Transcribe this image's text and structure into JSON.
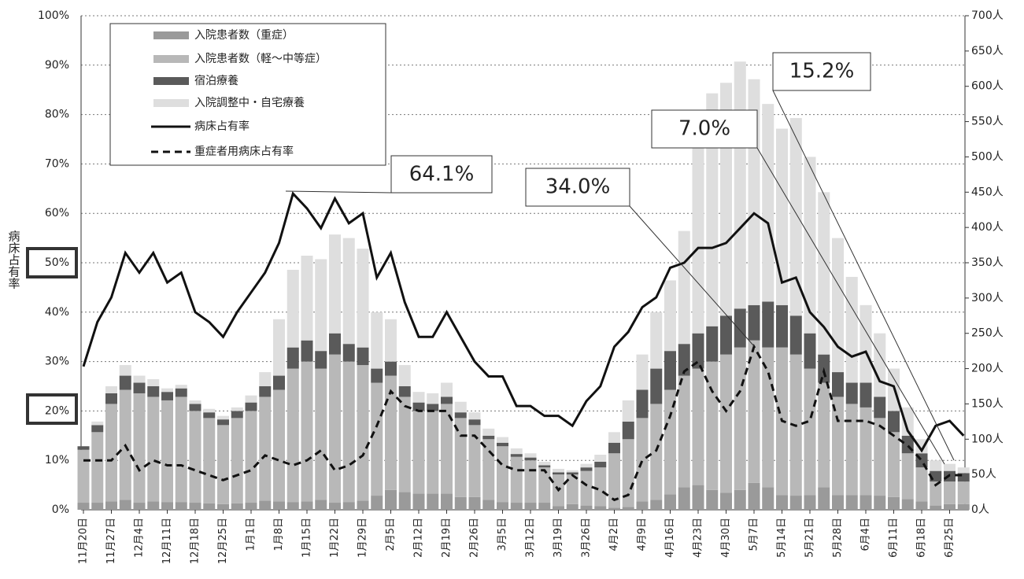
{
  "chart_data": {
    "type": "bar",
    "stacked": true,
    "y_label": "病床占有率",
    "categories": [
      "11月20日",
      null,
      "11月27日",
      null,
      "12月4日",
      null,
      "12月11日",
      null,
      "12月18日",
      null,
      "12月25日",
      null,
      "1月1日",
      null,
      "1月8日",
      null,
      "1月15日",
      null,
      "1月22日",
      null,
      "1月29日",
      null,
      "2月5日",
      null,
      "2月12日",
      null,
      "2月19日",
      null,
      "2月26日",
      null,
      "3月5日",
      null,
      "3月12日",
      null,
      "3月19日",
      null,
      "3月26日",
      null,
      "4月2日",
      null,
      "4月9日",
      null,
      "4月16日",
      null,
      "4月23日",
      null,
      "4月30日",
      null,
      "5月7日",
      null,
      "5月14日",
      null,
      "5月21日",
      null,
      "5月28日",
      null,
      "6月4日",
      null,
      "6月11日",
      null,
      "6月18日",
      null,
      "6月25日",
      null
    ],
    "series": [
      {
        "name": "入院患者数（重症）",
        "type": "bar",
        "axis": "y2",
        "color": "#9a9a9a",
        "values": [
          10,
          10,
          12,
          14,
          10,
          12,
          11,
          11,
          10,
          9,
          8,
          9,
          10,
          13,
          12,
          11,
          12,
          14,
          10,
          11,
          13,
          20,
          28,
          25,
          23,
          23,
          23,
          18,
          18,
          14,
          11,
          10,
          10,
          10,
          5,
          8,
          6,
          5,
          3,
          4,
          12,
          14,
          22,
          32,
          35,
          28,
          24,
          28,
          38,
          32,
          21,
          20,
          21,
          32,
          21,
          21,
          21,
          20,
          18,
          15,
          12,
          6,
          8,
          8
        ]
      },
      {
        "name": "入院患者数（軽～中等症）",
        "type": "bar",
        "axis": "y2",
        "color": "#b8b8b8",
        "values": [
          75,
          100,
          138,
          156,
          155,
          148,
          144,
          149,
          130,
          121,
          112,
          121,
          130,
          147,
          158,
          189,
          198,
          186,
          210,
          199,
          192,
          160,
          162,
          135,
          117,
          117,
          127,
          112,
          102,
          86,
          79,
          65,
          60,
          50,
          45,
          42,
          49,
          55,
          77,
          96,
          118,
          136,
          148,
          158,
          165,
          182,
          196,
          202,
          202,
          198,
          209,
          200,
          179,
          148,
          139,
          129,
          124,
          110,
          92,
          65,
          48,
          34,
          32,
          32
        ]
      },
      {
        "name": "宿泊療養",
        "type": "bar",
        "axis": "y2",
        "color": "#5a5a5a",
        "values": [
          5,
          10,
          15,
          20,
          15,
          15,
          12,
          12,
          10,
          8,
          8,
          10,
          12,
          15,
          20,
          30,
          30,
          25,
          30,
          25,
          25,
          20,
          20,
          15,
          12,
          10,
          10,
          8,
          8,
          5,
          5,
          4,
          4,
          3,
          3,
          3,
          5,
          8,
          15,
          25,
          40,
          50,
          55,
          45,
          50,
          50,
          55,
          55,
          50,
          65,
          60,
          55,
          50,
          40,
          35,
          30,
          35,
          30,
          30,
          25,
          20,
          15,
          15,
          12
        ]
      },
      {
        "name": "入院調整中・自宅療養",
        "type": "bar",
        "axis": "y2",
        "color": "#dedede",
        "values": [
          0,
          5,
          10,
          15,
          10,
          10,
          5,
          5,
          5,
          5,
          5,
          5,
          10,
          20,
          80,
          110,
          120,
          130,
          140,
          150,
          140,
          80,
          60,
          30,
          15,
          15,
          20,
          15,
          10,
          10,
          8,
          8,
          6,
          5,
          5,
          3,
          5,
          10,
          15,
          30,
          50,
          80,
          100,
          160,
          280,
          330,
          330,
          350,
          320,
          280,
          250,
          280,
          250,
          230,
          190,
          150,
          110,
          90,
          60,
          40,
          20,
          15,
          10,
          8
        ]
      },
      {
        "name": "病床占有率",
        "type": "line",
        "color": "#111111",
        "dash": false,
        "values": [
          29,
          38,
          43,
          52,
          48,
          52,
          46,
          48,
          40,
          38,
          35,
          40,
          44,
          48,
          54,
          64,
          61,
          57,
          63,
          58,
          60,
          47,
          52,
          42,
          35,
          35,
          40,
          35,
          30,
          27,
          27,
          21,
          21,
          19,
          19,
          17,
          22,
          25,
          33,
          36,
          41,
          43,
          49,
          50,
          53,
          53,
          54,
          57,
          60,
          58,
          46,
          47,
          40,
          37,
          33,
          31,
          32,
          26,
          25,
          16,
          12,
          17,
          18,
          15
        ]
      },
      {
        "name": "重症者用病床占有率",
        "type": "line",
        "color": "#111111",
        "dash": true,
        "values": [
          10,
          10,
          10,
          13,
          8,
          10,
          9,
          9,
          8,
          7,
          6,
          7,
          8,
          11,
          10,
          9,
          10,
          12,
          8,
          9,
          11,
          17,
          24,
          21,
          20,
          20,
          20,
          15,
          15,
          12,
          9,
          8,
          8,
          8,
          4,
          7,
          5,
          4,
          2,
          3,
          10,
          12,
          19,
          28,
          30,
          24,
          20,
          24,
          33,
          28,
          18,
          17,
          18,
          28,
          18,
          18,
          18,
          17,
          15,
          13,
          10,
          5,
          7,
          7
        ]
      }
    ],
    "ylim": [
      0,
      100
    ],
    "yticks": [
      {
        "value": 0,
        "label": "0%"
      },
      {
        "value": 10,
        "label": "10%"
      },
      {
        "value": 20,
        "label": "20%"
      },
      {
        "value": 30,
        "label": "30%"
      },
      {
        "value": 40,
        "label": "40%"
      },
      {
        "value": 50,
        "label": "50%"
      },
      {
        "value": 60,
        "label": "60%"
      },
      {
        "value": 70,
        "label": "70%"
      },
      {
        "value": 80,
        "label": "80%"
      },
      {
        "value": 90,
        "label": "90%"
      },
      {
        "value": 100,
        "label": "100%"
      }
    ],
    "y2lim": [
      0,
      700
    ],
    "y2ticks": [
      {
        "value": 0,
        "label": "0人"
      },
      {
        "value": 50,
        "label": "50人"
      },
      {
        "value": 100,
        "label": "100人"
      },
      {
        "value": 150,
        "label": "150人"
      },
      {
        "value": 200,
        "label": "200人"
      },
      {
        "value": 250,
        "label": "250人"
      },
      {
        "value": 300,
        "label": "300人"
      },
      {
        "value": 350,
        "label": "350人"
      },
      {
        "value": 400,
        "label": "400人"
      },
      {
        "value": 450,
        "label": "450人"
      },
      {
        "value": 500,
        "label": "500人"
      },
      {
        "value": 550,
        "label": "550人"
      },
      {
        "value": 600,
        "label": "600人"
      },
      {
        "value": 650,
        "label": "650人"
      },
      {
        "value": 700,
        "label": "700人"
      }
    ],
    "grid": true,
    "legend": "upper left",
    "annotations": [
      "64.1%",
      "34.0%",
      "7.0%",
      "15.2%"
    ]
  }
}
